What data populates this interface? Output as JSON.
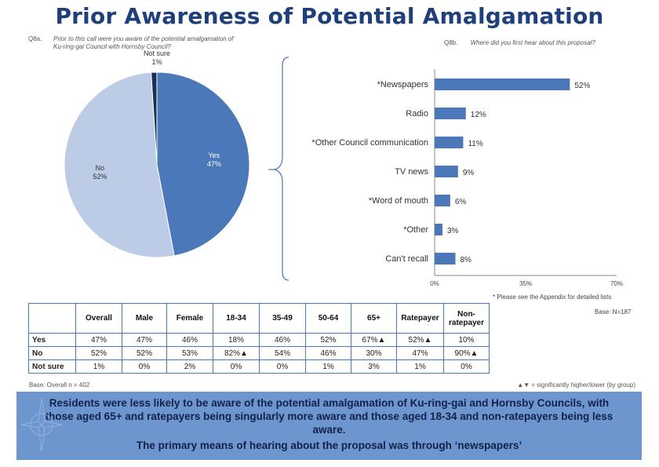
{
  "title": "Prior Awareness of Potential Amalgamation",
  "q8a": {
    "num": "Q8a.",
    "text_line1": "Prior to this call were you aware of the potential amalgamation of",
    "text_line2": "Ku-ring-gai Council with Hornsby Council?"
  },
  "q8b": {
    "num": "Q8b.",
    "text": "Where did you first hear about this proposal?"
  },
  "chart_data": [
    {
      "type": "pie",
      "categories": [
        "Yes",
        "No",
        "Not sure"
      ],
      "values": [
        47,
        52,
        1
      ],
      "labels": [
        "47%",
        "52%",
        "1%"
      ],
      "colors": [
        "#4a78b8",
        "#bccbe6",
        "#1b2f57"
      ]
    },
    {
      "type": "bar",
      "orientation": "horizontal",
      "categories": [
        "*Newspapers",
        "Radio",
        "*Other Council communication",
        "TV news",
        "*Word of mouth",
        "*Other",
        "Can't recall"
      ],
      "values": [
        52,
        12,
        11,
        9,
        6,
        3,
        8
      ],
      "value_labels": [
        "52%",
        "12%",
        "11%",
        "9%",
        "6%",
        "3%",
        "8%"
      ],
      "xlim": [
        0,
        70
      ],
      "ticks": [
        "0%",
        "35%",
        "70%"
      ],
      "color": "#4a78b8"
    }
  ],
  "footnote": "* Please see the Appendix for detailed lists",
  "base_right": "Base: N=187",
  "table": {
    "headers": [
      "Overall",
      "Male",
      "Female",
      "18-34",
      "35-49",
      "50-64",
      "65+",
      "Ratepayer",
      "Non-ratepayer"
    ],
    "rows": [
      {
        "label": "Yes",
        "cells": [
          "47%",
          "47%",
          "46%",
          "18%",
          "46%",
          "52%",
          "67%▲",
          "52%▲",
          "10%"
        ]
      },
      {
        "label": "No",
        "cells": [
          "52%",
          "52%",
          "53%",
          "82%▲",
          "54%",
          "46%",
          "30%",
          "47%",
          "90%▲"
        ]
      },
      {
        "label": "Not sure",
        "cells": [
          "1%",
          "0%",
          "2%",
          "0%",
          "0%",
          "1%",
          "3%",
          "1%",
          "0%"
        ]
      }
    ]
  },
  "base_left": "Base: Overall n = 402",
  "legend_note": "▲▼ = significantly higher/lower (by group)",
  "summary": {
    "line1": "Residents were less likely to be aware of the potential amalgamation of Ku-ring-gai and Hornsby Councils, with those aged 65+ and ratepayers being singularly more aware and those aged 18-34 and non-ratepayers being less aware.",
    "line2": "The primary means of hearing about the proposal was through ‘newspapers’"
  }
}
